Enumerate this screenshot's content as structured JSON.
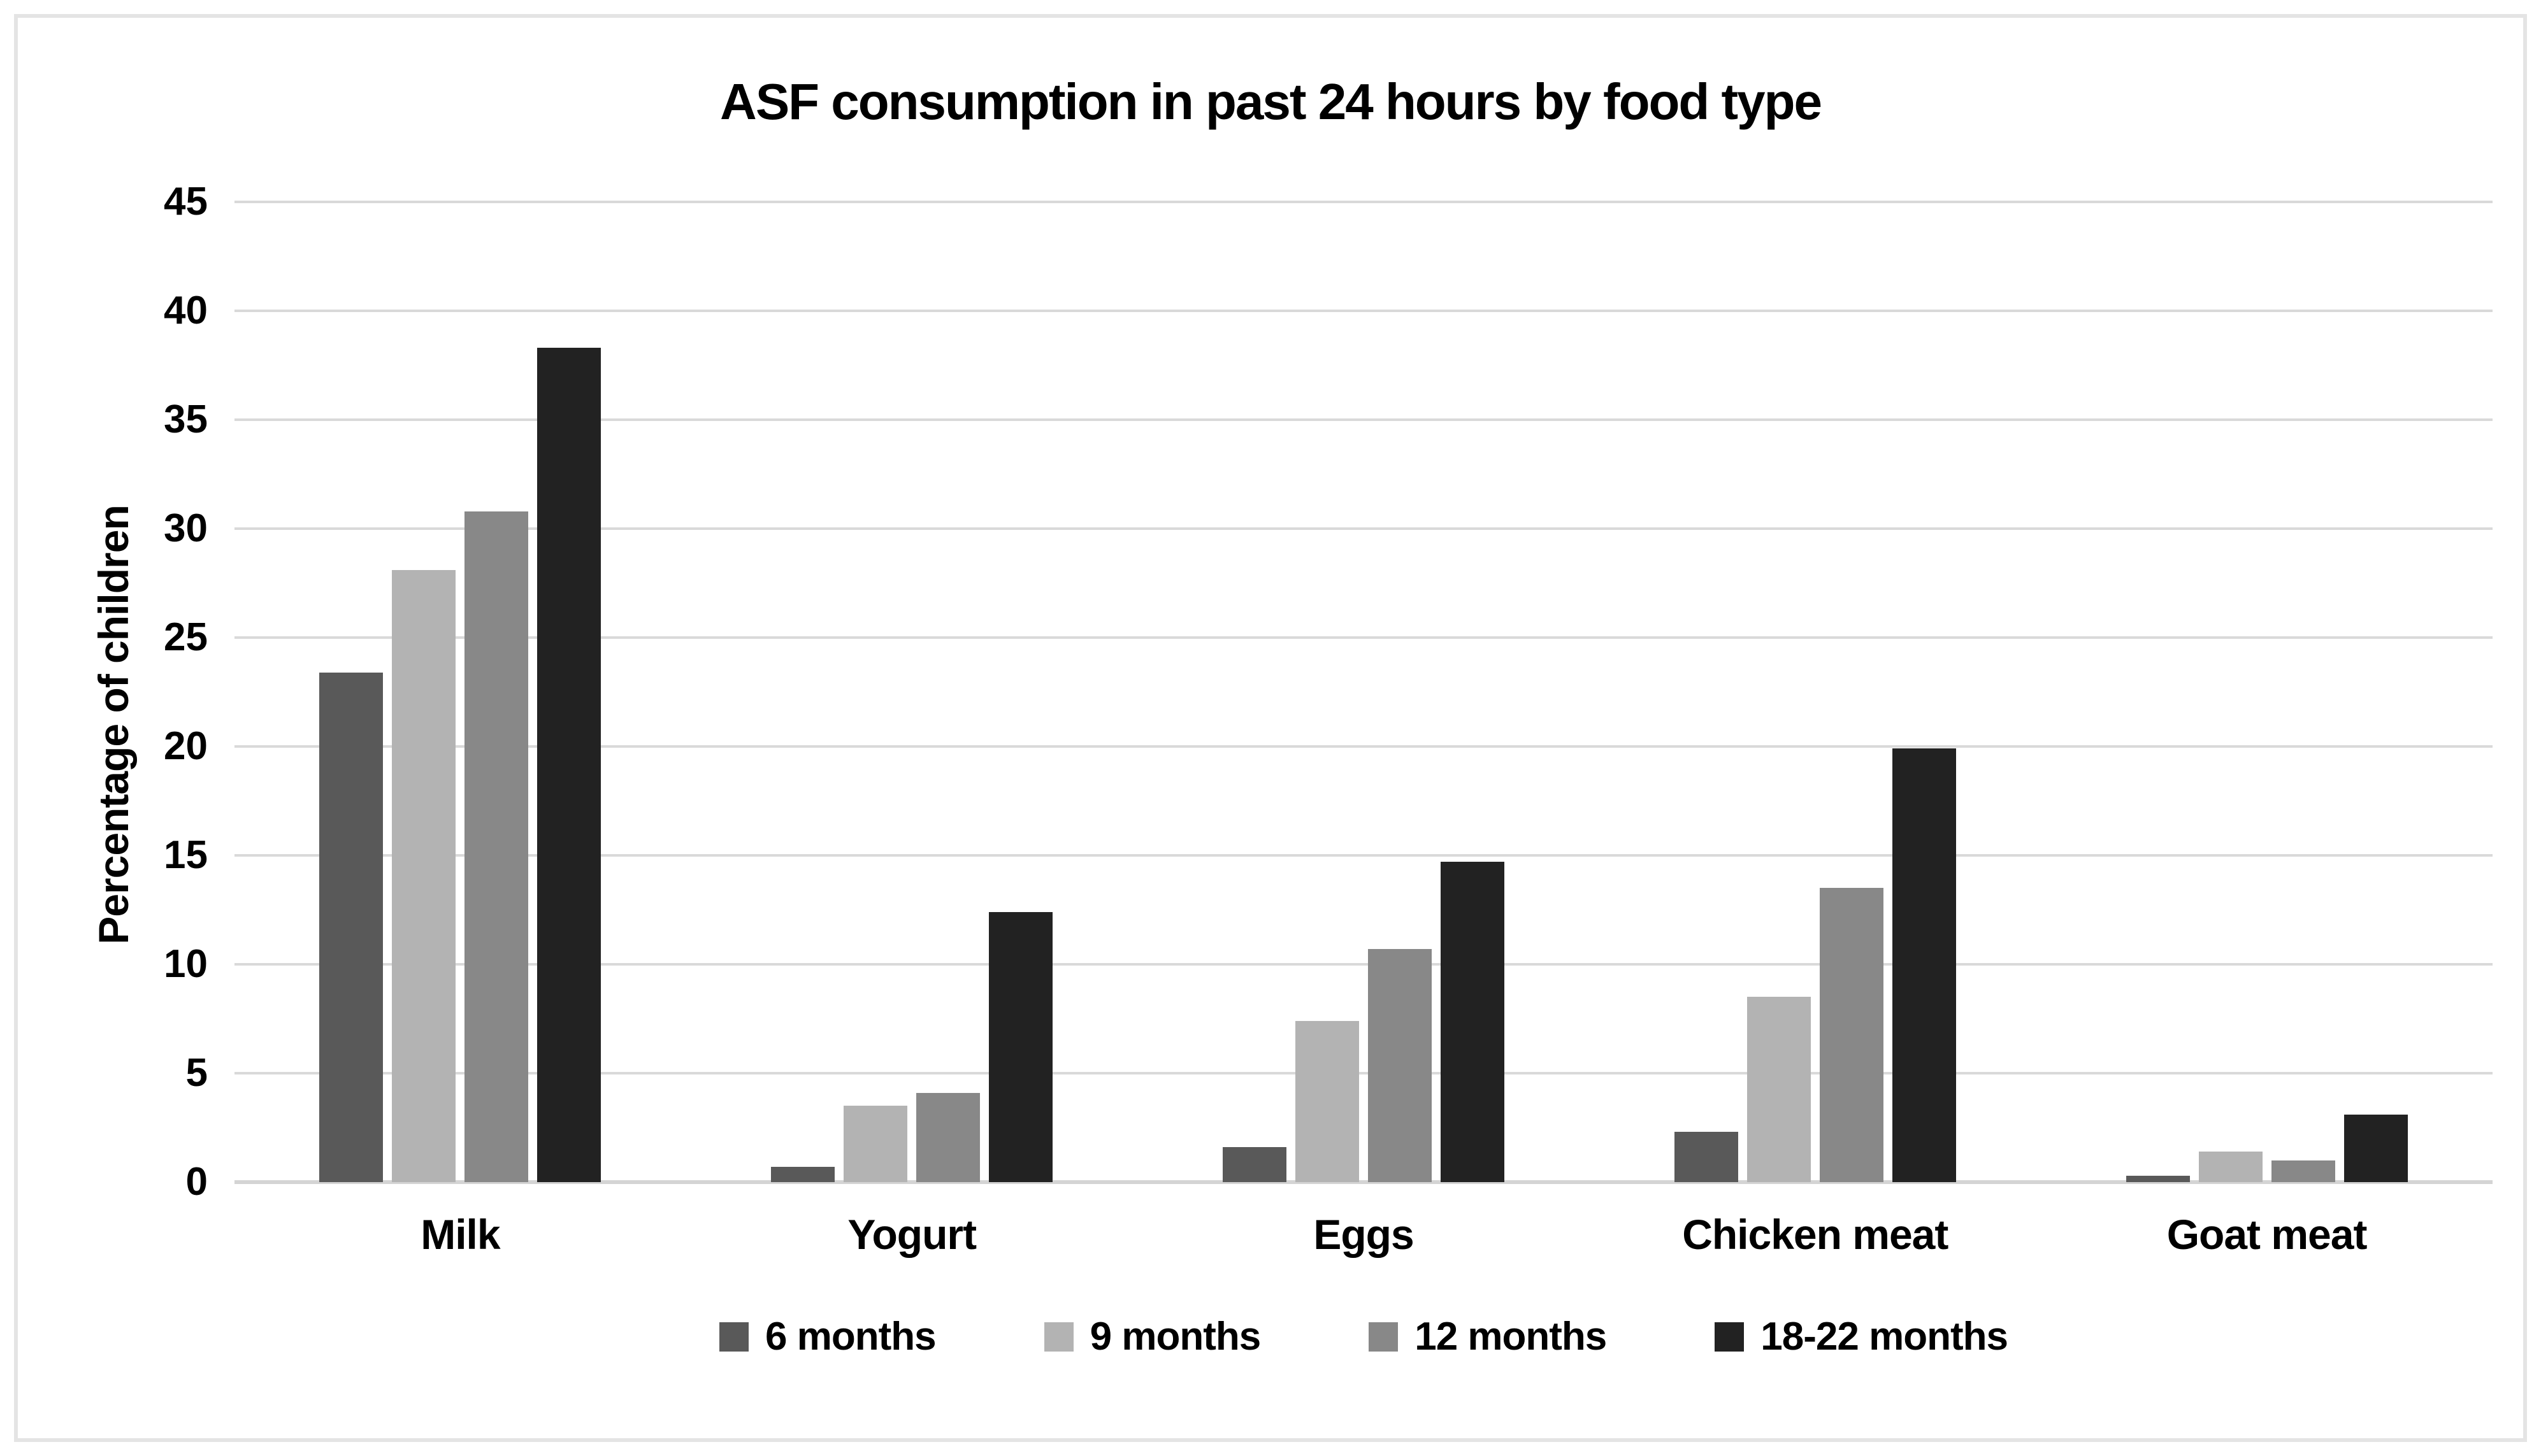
{
  "chart_data": {
    "type": "bar",
    "title": "ASF consumption in past 24 hours by food type",
    "xlabel": "",
    "ylabel": "Percentage of children",
    "ylim": [
      0,
      45
    ],
    "ytick_step": 5,
    "yticks": [
      0,
      5,
      10,
      15,
      20,
      25,
      30,
      35,
      40,
      45
    ],
    "grid": "horizontal",
    "legend_position": "bottom",
    "categories": [
      "Milk",
      "Yogurt",
      "Eggs",
      "Chicken meat",
      "Goat meat"
    ],
    "series": [
      {
        "name": "6 months",
        "color": "#595959",
        "values": [
          23.4,
          0.7,
          1.6,
          2.3,
          0.3
        ]
      },
      {
        "name": "9 months",
        "color": "#b3b3b3",
        "values": [
          28.1,
          3.5,
          7.4,
          8.5,
          1.4
        ]
      },
      {
        "name": "12 months",
        "color": "#888888",
        "values": [
          30.8,
          4.1,
          10.7,
          13.5,
          1.0
        ]
      },
      {
        "name": "18-22 months",
        "color": "#222222",
        "values": [
          38.3,
          12.4,
          14.7,
          19.9,
          3.1
        ]
      }
    ],
    "colors": {
      "gridline": "#d9d9d9",
      "axis_line": "#d4d4d4",
      "figure_border": "#e4e4e4",
      "background": "#ffffff",
      "text": "#000000"
    }
  }
}
